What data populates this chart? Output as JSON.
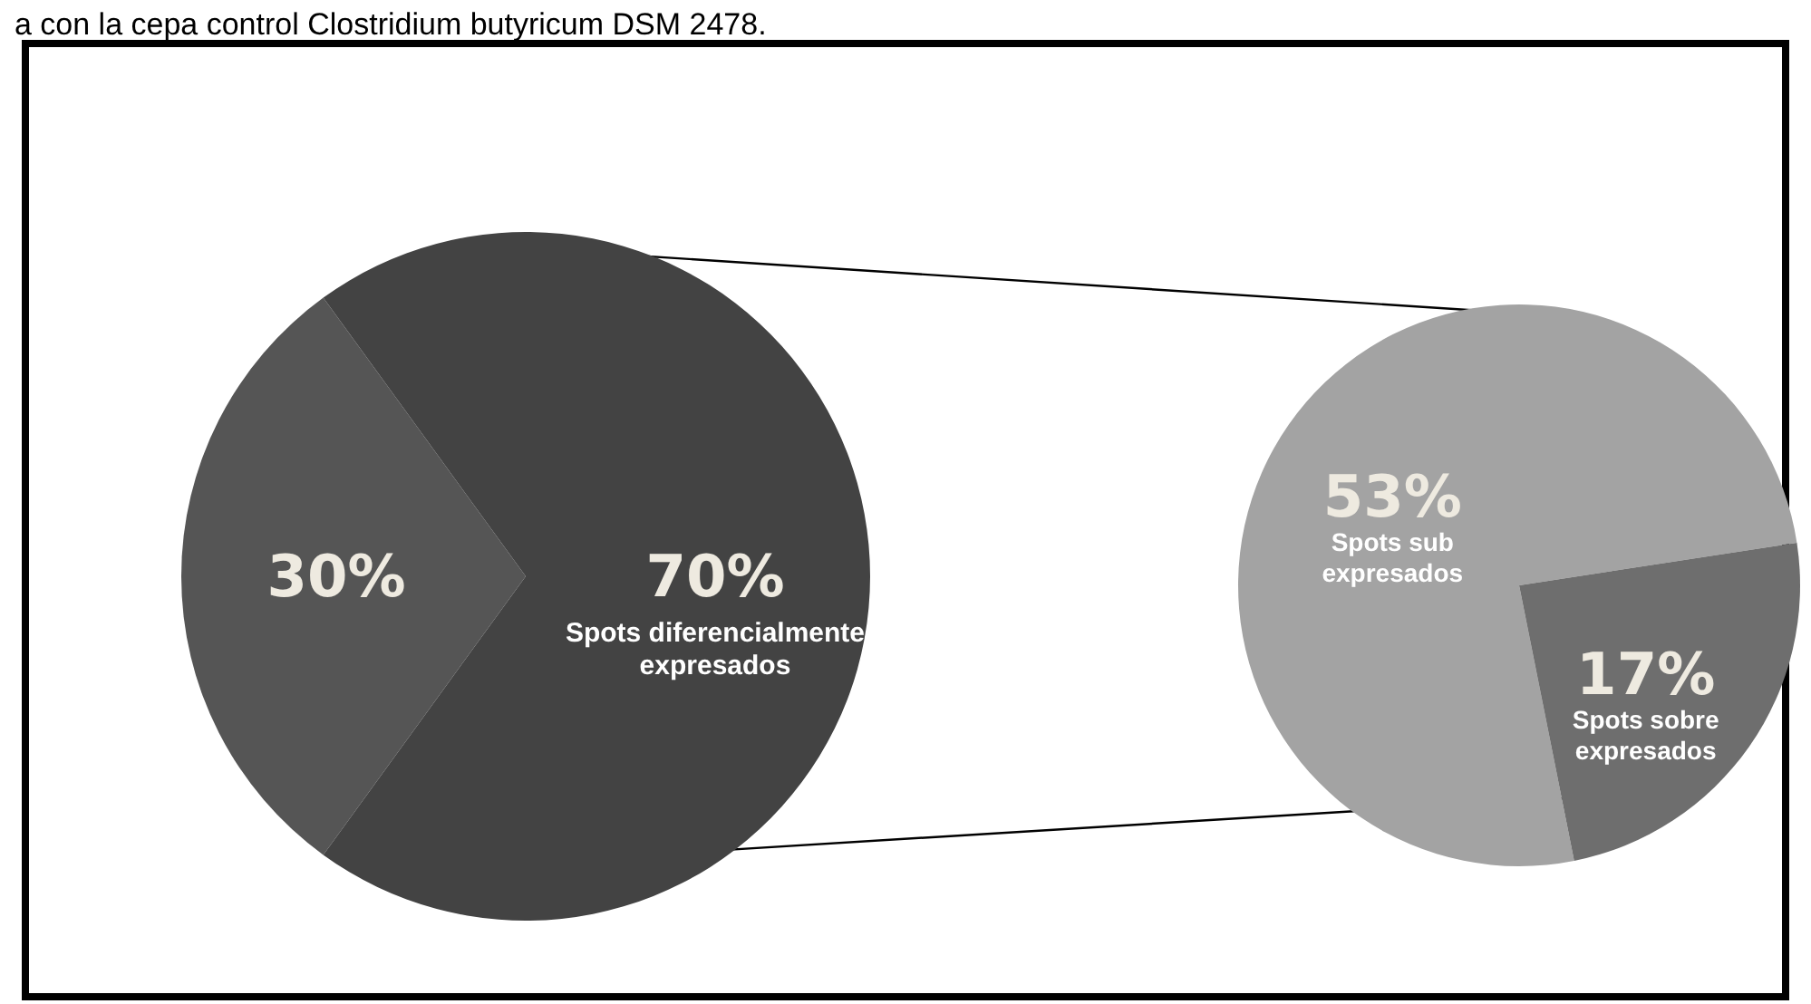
{
  "chart_data": [
    {
      "type": "pie",
      "annotations": [
        "a con la cepa control Clostridium butyricum DSM 2478."
      ],
      "categories": [
        null,
        "Spots diferencialmente expresados"
      ],
      "values": [
        30,
        70
      ],
      "value_labels": [
        "30%",
        "70%"
      ],
      "colors": [
        "#555555",
        "#434343"
      ]
    },
    {
      "type": "pie",
      "categories": [
        "Spots sub expresados",
        "Spots sobre expresados"
      ],
      "values": [
        53,
        17
      ],
      "value_labels": [
        "53%",
        "17%"
      ],
      "colors": [
        "#a3a3a3",
        "#6e6e6e"
      ]
    }
  ]
}
